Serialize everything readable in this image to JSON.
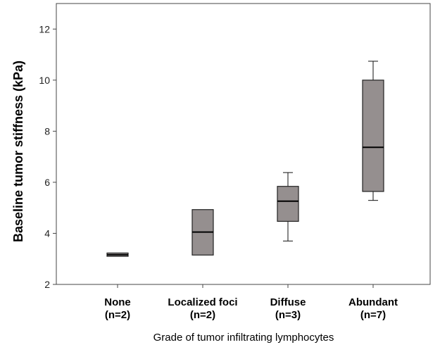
{
  "chart_data": {
    "type": "box",
    "title": "",
    "xlabel": "Grade of tumor infiltrating lymphocytes",
    "ylabel": "Baseline tumor stiffness (kPa)",
    "ylim": [
      2,
      13
    ],
    "yticks": [
      2,
      4,
      6,
      8,
      10,
      12
    ],
    "grid": false,
    "box_color": "#958f8f",
    "categories": [
      {
        "label": "None",
        "n": "(n=2)",
        "min": 3.1,
        "q1": 3.1,
        "median": 3.16,
        "q3": 3.23,
        "max": 3.23
      },
      {
        "label": "Localized foci",
        "n": "(n=2)",
        "min": 3.15,
        "q1": 3.15,
        "median": 4.05,
        "q3": 4.93,
        "max": 4.93
      },
      {
        "label": "Diffuse",
        "n": "(n=3)",
        "min": 3.7,
        "q1": 4.47,
        "median": 5.26,
        "q3": 5.84,
        "max": 6.38
      },
      {
        "label": "Abundant",
        "n": "(n=7)",
        "min": 5.29,
        "q1": 5.64,
        "median": 7.37,
        "q3": 10.0,
        "max": 10.74
      }
    ]
  }
}
